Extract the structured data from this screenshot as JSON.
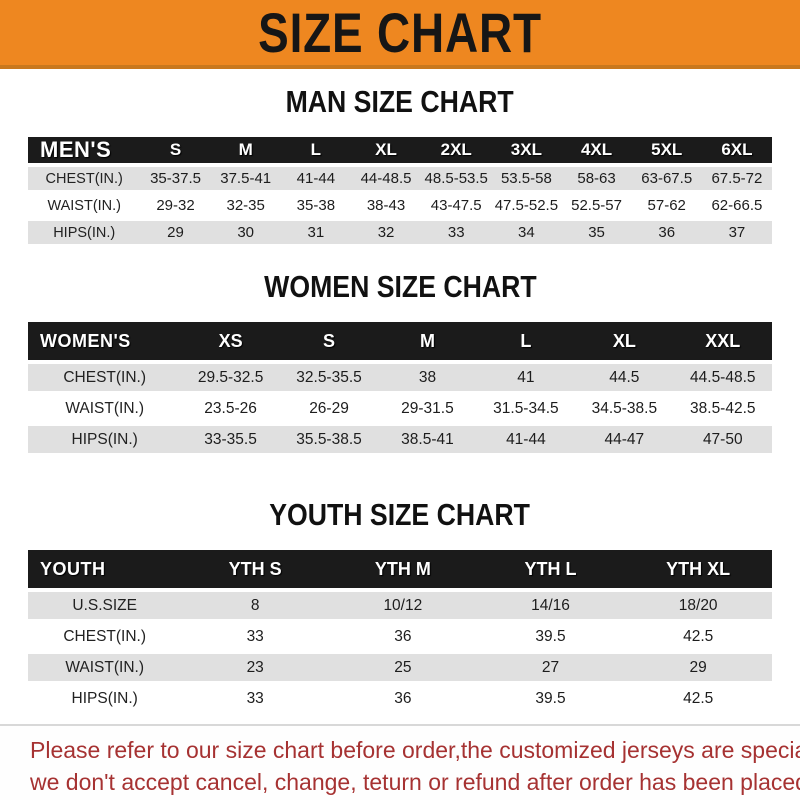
{
  "banner": {
    "title": "SIZE CHART",
    "bg_color": "#EE8720",
    "text_color": "#161616"
  },
  "sections": [
    {
      "heading": "MAN SIZE CHART",
      "table": {
        "name": "MEN'S",
        "columns": [
          "S",
          "M",
          "L",
          "XL",
          "2XL",
          "3XL",
          "4XL",
          "5XL",
          "6XL"
        ],
        "rows": [
          {
            "label": "CHEST(IN.)",
            "values": [
              "35-37.5",
              "37.5-41",
              "41-44",
              "44-48.5",
              "48.5-53.5",
              "53.5-58",
              "58-63",
              "63-67.5",
              "67.5-72"
            ]
          },
          {
            "label": "WAIST(IN.)",
            "values": [
              "29-32",
              "32-35",
              "35-38",
              "38-43",
              "43-47.5",
              "47.5-52.5",
              "52.5-57",
              "57-62",
              "62-66.5"
            ]
          },
          {
            "label": "HIPS(IN.)",
            "values": [
              "29",
              "30",
              "31",
              "32",
              "33",
              "34",
              "35",
              "36",
              "37"
            ]
          }
        ]
      }
    },
    {
      "heading": "WOMEN SIZE CHART",
      "table": {
        "name": "WOMEN'S",
        "columns": [
          "XS",
          "S",
          "M",
          "L",
          "XL",
          "XXL"
        ],
        "rows": [
          {
            "label": "CHEST(IN.)",
            "values": [
              "29.5-32.5",
              "32.5-35.5",
              "38",
              "41",
              "44.5",
              "44.5-48.5"
            ]
          },
          {
            "label": "WAIST(IN.)",
            "values": [
              "23.5-26",
              "26-29",
              "29-31.5",
              "31.5-34.5",
              "34.5-38.5",
              "38.5-42.5"
            ]
          },
          {
            "label": "HIPS(IN.)",
            "values": [
              "33-35.5",
              "35.5-38.5",
              "38.5-41",
              "41-44",
              "44-47",
              "47-50"
            ]
          }
        ]
      }
    },
    {
      "heading": "YOUTH SIZE CHART",
      "table": {
        "name": "YOUTH",
        "columns": [
          "YTH S",
          "YTH M",
          "YTH L",
          "YTH XL"
        ],
        "rows": [
          {
            "label": "U.S.SIZE",
            "values": [
              "8",
              "10/12",
              "14/16",
              "18/20"
            ]
          },
          {
            "label": "CHEST(IN.)",
            "values": [
              "33",
              "36",
              "39.5",
              "42.5"
            ]
          },
          {
            "label": "WAIST(IN.)",
            "values": [
              "23",
              "25",
              "27",
              "29"
            ]
          },
          {
            "label": "HIPS(IN.)",
            "values": [
              "33",
              "36",
              "39.5",
              "42.5"
            ]
          }
        ]
      }
    }
  ],
  "disclaimer": {
    "line1": "Please refer to our size chart before order,the customized jerseys are special products,",
    "line2": "we don't accept cancel, change, teturn or refund after order has been placed!",
    "text_color": "#A63232"
  },
  "chart_data": [
    {
      "type": "table",
      "title": "MAN SIZE CHART",
      "categories": [
        "S",
        "M",
        "L",
        "XL",
        "2XL",
        "3XL",
        "4XL",
        "5XL",
        "6XL"
      ],
      "series": [
        {
          "name": "CHEST(IN.)",
          "values": [
            "35-37.5",
            "37.5-41",
            "41-44",
            "44-48.5",
            "48.5-53.5",
            "53.5-58",
            "58-63",
            "63-67.5",
            "67.5-72"
          ]
        },
        {
          "name": "WAIST(IN.)",
          "values": [
            "29-32",
            "32-35",
            "35-38",
            "38-43",
            "43-47.5",
            "47.5-52.5",
            "52.5-57",
            "57-62",
            "62-66.5"
          ]
        },
        {
          "name": "HIPS(IN.)",
          "values": [
            "29",
            "30",
            "31",
            "32",
            "33",
            "34",
            "35",
            "36",
            "37"
          ]
        }
      ]
    },
    {
      "type": "table",
      "title": "WOMEN SIZE CHART",
      "categories": [
        "XS",
        "S",
        "M",
        "L",
        "XL",
        "XXL"
      ],
      "series": [
        {
          "name": "CHEST(IN.)",
          "values": [
            "29.5-32.5",
            "32.5-35.5",
            "38",
            "41",
            "44.5",
            "44.5-48.5"
          ]
        },
        {
          "name": "WAIST(IN.)",
          "values": [
            "23.5-26",
            "26-29",
            "29-31.5",
            "31.5-34.5",
            "34.5-38.5",
            "38.5-42.5"
          ]
        },
        {
          "name": "HIPS(IN.)",
          "values": [
            "33-35.5",
            "35.5-38.5",
            "38.5-41",
            "41-44",
            "44-47",
            "47-50"
          ]
        }
      ]
    },
    {
      "type": "table",
      "title": "YOUTH SIZE CHART",
      "categories": [
        "YTH S",
        "YTH M",
        "YTH L",
        "YTH XL"
      ],
      "series": [
        {
          "name": "U.S.SIZE",
          "values": [
            "8",
            "10/12",
            "14/16",
            "18/20"
          ]
        },
        {
          "name": "CHEST(IN.)",
          "values": [
            "33",
            "36",
            "39.5",
            "42.5"
          ]
        },
        {
          "name": "WAIST(IN.)",
          "values": [
            "23",
            "25",
            "27",
            "29"
          ]
        },
        {
          "name": "HIPS(IN.)",
          "values": [
            "33",
            "36",
            "39.5",
            "42.5"
          ]
        }
      ]
    }
  ]
}
